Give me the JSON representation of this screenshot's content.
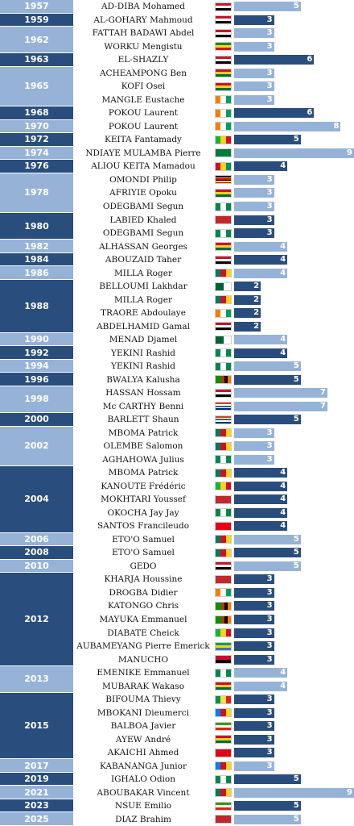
{
  "colors": {
    "dark": "#294d7d",
    "light": "#96b3d7"
  },
  "chart_data": {
    "type": "bar",
    "max_value": 9,
    "years": [
      {
        "year": "1957",
        "players": [
          {
            "name": "AD-DIBA Mohamed",
            "goals": 5,
            "flag": "egypt"
          }
        ]
      },
      {
        "year": "1959",
        "players": [
          {
            "name": "AL-GOHARY Mahmoud",
            "goals": 3,
            "flag": "egypt"
          }
        ]
      },
      {
        "year": "1962",
        "players": [
          {
            "name": "FATTAH BADAWI Abdel",
            "goals": 3,
            "flag": "egypt"
          },
          {
            "name": "WORKU Mengistu",
            "goals": 3,
            "flag": "ethiopia"
          }
        ]
      },
      {
        "year": "1963",
        "players": [
          {
            "name": "EL-SHAZLY",
            "goals": 6,
            "flag": "egypt"
          }
        ]
      },
      {
        "year": "1965",
        "players": [
          {
            "name": "ACHEAMPONG Ben",
            "goals": 3,
            "flag": "ghana"
          },
          {
            "name": "KOFI Osei",
            "goals": 3,
            "flag": "ghana"
          },
          {
            "name": "MANGLE Eustache",
            "goals": 3,
            "flag": "ivory"
          }
        ]
      },
      {
        "year": "1968",
        "players": [
          {
            "name": "POKOU Laurent",
            "goals": 6,
            "flag": "ivory"
          }
        ]
      },
      {
        "year": "1970",
        "players": [
          {
            "name": "POKOU Laurent",
            "goals": 8,
            "flag": "ivory"
          }
        ]
      },
      {
        "year": "1972",
        "players": [
          {
            "name": "KEITA Fantamady",
            "goals": 5,
            "flag": "mali"
          }
        ]
      },
      {
        "year": "1974",
        "players": [
          {
            "name": "NDIAYE MULAMBA Pierre",
            "goals": 9,
            "flag": "zaire"
          }
        ]
      },
      {
        "year": "1976",
        "players": [
          {
            "name": "ALIOU KEITA Mamadou",
            "goals": 4,
            "flag": "guinea"
          }
        ]
      },
      {
        "year": "1978",
        "players": [
          {
            "name": "OMONDI Philip",
            "goals": 3,
            "flag": "uganda"
          },
          {
            "name": "AFRIYIE Opoku",
            "goals": 3,
            "flag": "ghana"
          },
          {
            "name": "ODEGBAMI Segun",
            "goals": 3,
            "flag": "nigeria"
          }
        ]
      },
      {
        "year": "1980",
        "players": [
          {
            "name": "LABIED Khaled",
            "goals": 3,
            "flag": "morocco"
          },
          {
            "name": "ODEGBAMI Segun",
            "goals": 3,
            "flag": "nigeria"
          }
        ]
      },
      {
        "year": "1982",
        "players": [
          {
            "name": "ALHASSAN Georges",
            "goals": 4,
            "flag": "ghana"
          }
        ]
      },
      {
        "year": "1984",
        "players": [
          {
            "name": "ABOUZAID Taher",
            "goals": 4,
            "flag": "egypt"
          }
        ]
      },
      {
        "year": "1986",
        "players": [
          {
            "name": "MILLA Roger",
            "goals": 4,
            "flag": "cameroon"
          }
        ]
      },
      {
        "year": "1988",
        "players": [
          {
            "name": "BELLOUMI Lakhdar",
            "goals": 2,
            "flag": "algeria"
          },
          {
            "name": "MILLA Roger",
            "goals": 2,
            "flag": "cameroon"
          },
          {
            "name": "TRAORE Abdoulaye",
            "goals": 2,
            "flag": "ivory"
          },
          {
            "name": "ABDELHAMID Gamal",
            "goals": 2,
            "flag": "egypt"
          }
        ]
      },
      {
        "year": "1990",
        "players": [
          {
            "name": "MENAD Djamel",
            "goals": 4,
            "flag": "algeria"
          }
        ]
      },
      {
        "year": "1992",
        "players": [
          {
            "name": "YEKINI Rashid",
            "goals": 4,
            "flag": "nigeria"
          }
        ]
      },
      {
        "year": "1994",
        "players": [
          {
            "name": "YEKINI Rashid",
            "goals": 5,
            "flag": "nigeria"
          }
        ]
      },
      {
        "year": "1996",
        "players": [
          {
            "name": "BWALYA Kalusha",
            "goals": 5,
            "flag": "zambia"
          }
        ]
      },
      {
        "year": "1998",
        "players": [
          {
            "name": "HASSAN Hossam",
            "goals": 7,
            "flag": "egypt"
          },
          {
            "name": "Mc CARTHY Benni",
            "goals": 7,
            "flag": "southafrica"
          }
        ]
      },
      {
        "year": "2000",
        "players": [
          {
            "name": "BARLETT Shaun",
            "goals": 5,
            "flag": "southafrica"
          }
        ]
      },
      {
        "year": "2002",
        "players": [
          {
            "name": "MBOMA Patrick",
            "goals": 3,
            "flag": "cameroon"
          },
          {
            "name": "OLEMBE Salomon",
            "goals": 3,
            "flag": "cameroon"
          },
          {
            "name": "AGHAHOWA Julius",
            "goals": 3,
            "flag": "nigeria"
          }
        ]
      },
      {
        "year": "2004",
        "players": [
          {
            "name": "MBOMA Patrick",
            "goals": 4,
            "flag": "cameroon"
          },
          {
            "name": "KANOUTE Frédéric",
            "goals": 4,
            "flag": "mali"
          },
          {
            "name": "MOKHTARI Youssef",
            "goals": 4,
            "flag": "morocco"
          },
          {
            "name": "OKOCHA Jay Jay",
            "goals": 4,
            "flag": "nigeria"
          },
          {
            "name": "SANTOS Francileudo",
            "goals": 4,
            "flag": "tunisia"
          }
        ]
      },
      {
        "year": "2006",
        "players": [
          {
            "name": "ETO'O Samuel",
            "goals": 5,
            "flag": "cameroon"
          }
        ]
      },
      {
        "year": "2008",
        "players": [
          {
            "name": "ETO'O Samuel",
            "goals": 5,
            "flag": "cameroon"
          }
        ]
      },
      {
        "year": "2010",
        "players": [
          {
            "name": "GEDO",
            "goals": 5,
            "flag": "egypt"
          }
        ]
      },
      {
        "year": "2012",
        "players": [
          {
            "name": "KHARJA Houssine",
            "goals": 3,
            "flag": "morocco"
          },
          {
            "name": "DROGBA Didier",
            "goals": 3,
            "flag": "ivory"
          },
          {
            "name": "KATONGO Chris",
            "goals": 3,
            "flag": "zambia"
          },
          {
            "name": "MAYUKA Emmanuel",
            "goals": 3,
            "flag": "zambia"
          },
          {
            "name": "DIABATE Cheick",
            "goals": 3,
            "flag": "mali"
          },
          {
            "name": "AUBAMEYANG Pierre Emerick",
            "goals": 3,
            "flag": "gabon"
          },
          {
            "name": "MANUCHO",
            "goals": 3,
            "flag": "angola"
          }
        ]
      },
      {
        "year": "2013",
        "players": [
          {
            "name": "EMENIKE Emmanuel",
            "goals": 4,
            "flag": "nigeria"
          },
          {
            "name": "MUBARAK Wakaso",
            "goals": 4,
            "flag": "ghana"
          }
        ]
      },
      {
        "year": "2015",
        "players": [
          {
            "name": "BIFOUMA Thievy",
            "goals": 3,
            "flag": "congo"
          },
          {
            "name": "MBOKANI Dieumerci",
            "goals": 3,
            "flag": "drcongo"
          },
          {
            "name": "BALBOA Javier",
            "goals": 3,
            "flag": "eqguinea"
          },
          {
            "name": "AYEW André",
            "goals": 3,
            "flag": "ghana"
          },
          {
            "name": "AKAICHI Ahmed",
            "goals": 3,
            "flag": "tunisia"
          }
        ]
      },
      {
        "year": "2017",
        "players": [
          {
            "name": "KABANANGA Junior",
            "goals": 3,
            "flag": "drcongo"
          }
        ]
      },
      {
        "year": "2019",
        "players": [
          {
            "name": "IGHALO Odion",
            "goals": 5,
            "flag": "nigeria"
          }
        ]
      },
      {
        "year": "2021",
        "players": [
          {
            "name": "ABOUBAKAR Vincent",
            "goals": 9,
            "flag": "cameroon"
          }
        ]
      },
      {
        "year": "2023",
        "players": [
          {
            "name": "NSUE Emilio",
            "goals": 5,
            "flag": "eqguinea"
          }
        ]
      },
      {
        "year": "2025",
        "players": [
          {
            "name": "DIAZ Brahim",
            "goals": 5,
            "flag": "morocco"
          }
        ]
      }
    ]
  }
}
